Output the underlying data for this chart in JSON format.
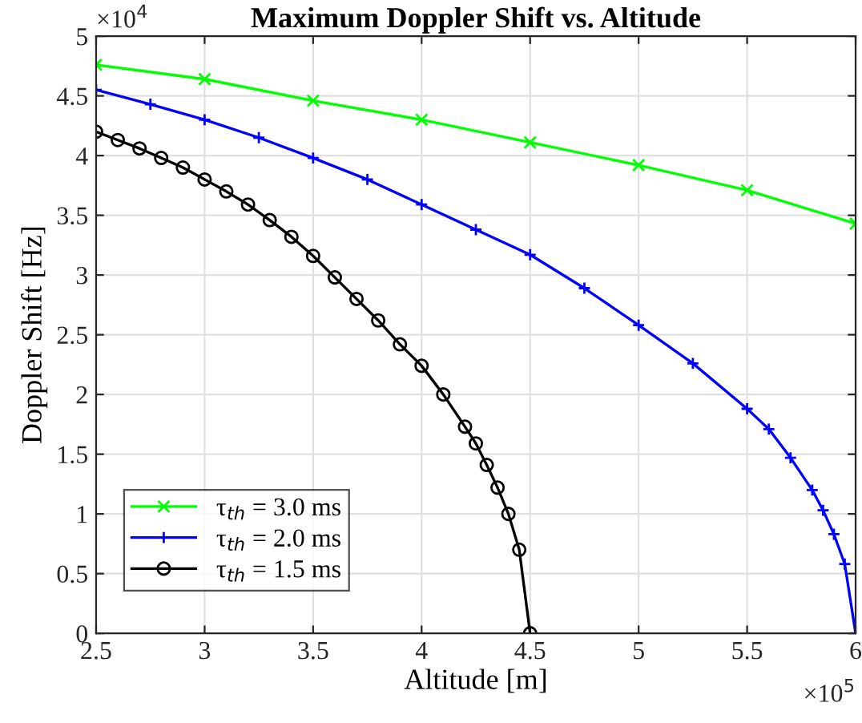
{
  "chart_data": {
    "type": "line",
    "title": "Maximum Doppler Shift vs. Altitude",
    "xlabel": "Altitude [m]",
    "ylabel": "Doppler Shift [Hz]",
    "annotations": [
      "×10$^{4}$",
      "×10$^{5}$"
    ],
    "xlim": [
      2.5,
      6
    ],
    "ylim": [
      0,
      5
    ],
    "xticks": [
      2.5,
      3,
      3.5,
      4,
      4.5,
      5,
      5.5,
      6
    ],
    "yticks": [
      0,
      0.5,
      1,
      1.5,
      2,
      2.5,
      3,
      3.5,
      4,
      4.5,
      5
    ],
    "grid": true,
    "legend": "bottom left",
    "series": [
      {
        "name": "τ$_{th}$ = 3.0 ms",
        "color": "#00ff00",
        "marker": "cross",
        "x": [
          2.5,
          3.0,
          3.5,
          4.0,
          4.5,
          5.0,
          5.5,
          6.0
        ],
        "values": [
          4.76,
          4.64,
          4.46,
          4.3,
          4.11,
          3.92,
          3.71,
          3.43
        ]
      },
      {
        "name": "τ$_{th}$ = 2.0 ms",
        "color": "#0000ff",
        "marker": "plus",
        "x": [
          2.5,
          2.75,
          3.0,
          3.25,
          3.5,
          3.75,
          4.0,
          4.25,
          4.5,
          4.75,
          5.0,
          5.25,
          5.5,
          5.6,
          5.7,
          5.8,
          5.85,
          5.9,
          5.95,
          6.0
        ],
        "values": [
          4.55,
          4.43,
          4.3,
          4.15,
          3.98,
          3.8,
          3.59,
          3.38,
          3.17,
          2.89,
          2.58,
          2.26,
          1.88,
          1.71,
          1.47,
          1.2,
          1.03,
          0.83,
          0.58,
          0
        ]
      },
      {
        "name": "τ$_{th}$ = 1.5 ms",
        "color": "#000000",
        "marker": "circle",
        "x": [
          2.5,
          2.6,
          2.7,
          2.8,
          2.9,
          3.0,
          3.1,
          3.2,
          3.3,
          3.4,
          3.5,
          3.6,
          3.7,
          3.8,
          3.9,
          4.0,
          4.1,
          4.2,
          4.25,
          4.3,
          4.35,
          4.4,
          4.45,
          4.5
        ],
        "values": [
          4.2,
          4.13,
          4.06,
          3.98,
          3.9,
          3.8,
          3.7,
          3.59,
          3.46,
          3.32,
          3.16,
          2.98,
          2.8,
          2.62,
          2.42,
          2.24,
          2.0,
          1.73,
          1.59,
          1.41,
          1.22,
          1.0,
          0.7,
          0
        ]
      }
    ]
  }
}
